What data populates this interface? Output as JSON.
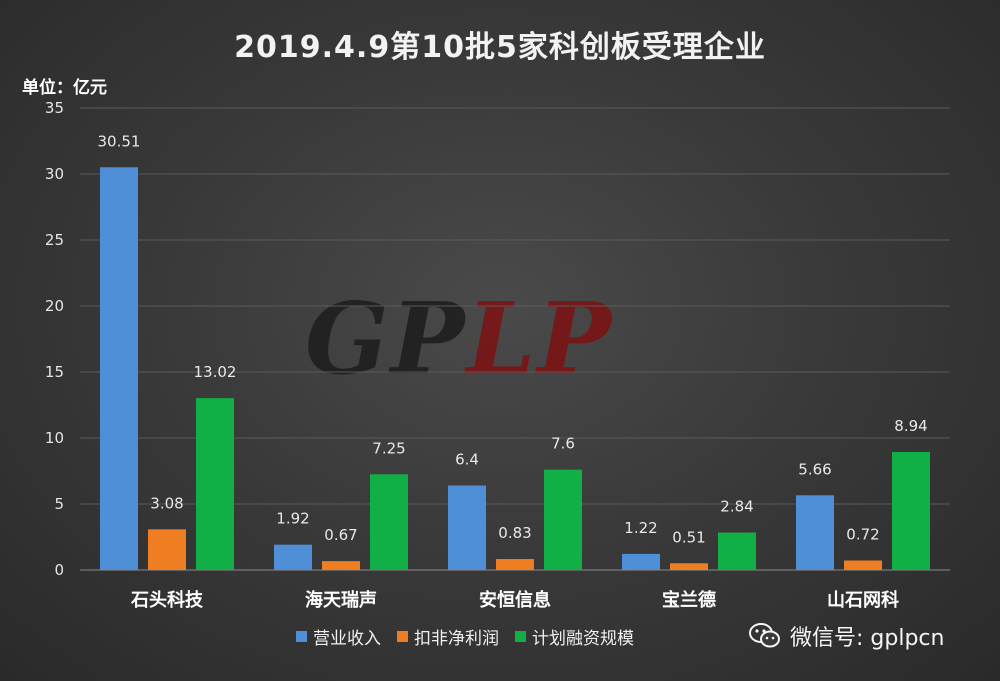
{
  "title": "2019.4.9第10批5家科创板受理企业",
  "unit_label": "单位：亿元",
  "watermark": {
    "part1": "GP",
    "part2": "L",
    "part3": "P"
  },
  "wechat": {
    "label": "微信号: gplpcn",
    "icon": "wechat-icon"
  },
  "colors": {
    "营业收入": "#4f8fd8",
    "扣非净利润": "#ef7d22",
    "计划融资规模": "#11b046"
  },
  "chart_data": {
    "type": "bar",
    "categories": [
      "石头科技",
      "海天瑞声",
      "安恒信息",
      "宝兰德",
      "山石网科"
    ],
    "series": [
      {
        "name": "营业收入",
        "values": [
          30.51,
          1.92,
          6.4,
          1.22,
          5.66
        ],
        "labels": [
          "30.51",
          "1.92",
          "6.4",
          "1.22",
          "5.66"
        ]
      },
      {
        "name": "扣非净利润",
        "values": [
          3.08,
          0.67,
          0.83,
          0.51,
          0.72
        ],
        "labels": [
          "3.08",
          "0.67",
          "0.83",
          "0.51",
          "0.72"
        ]
      },
      {
        "name": "计划融资规模",
        "values": [
          13.02,
          7.25,
          7.6,
          2.84,
          8.94
        ],
        "labels": [
          "13.02",
          "7.25",
          "7.6",
          "2.84",
          "8.94"
        ]
      }
    ],
    "yticks": [
      "0",
      "5",
      "10",
      "15",
      "20",
      "25",
      "30",
      "35"
    ],
    "ylim": [
      0,
      35
    ],
    "grid": true,
    "legend_position": "bottom"
  }
}
